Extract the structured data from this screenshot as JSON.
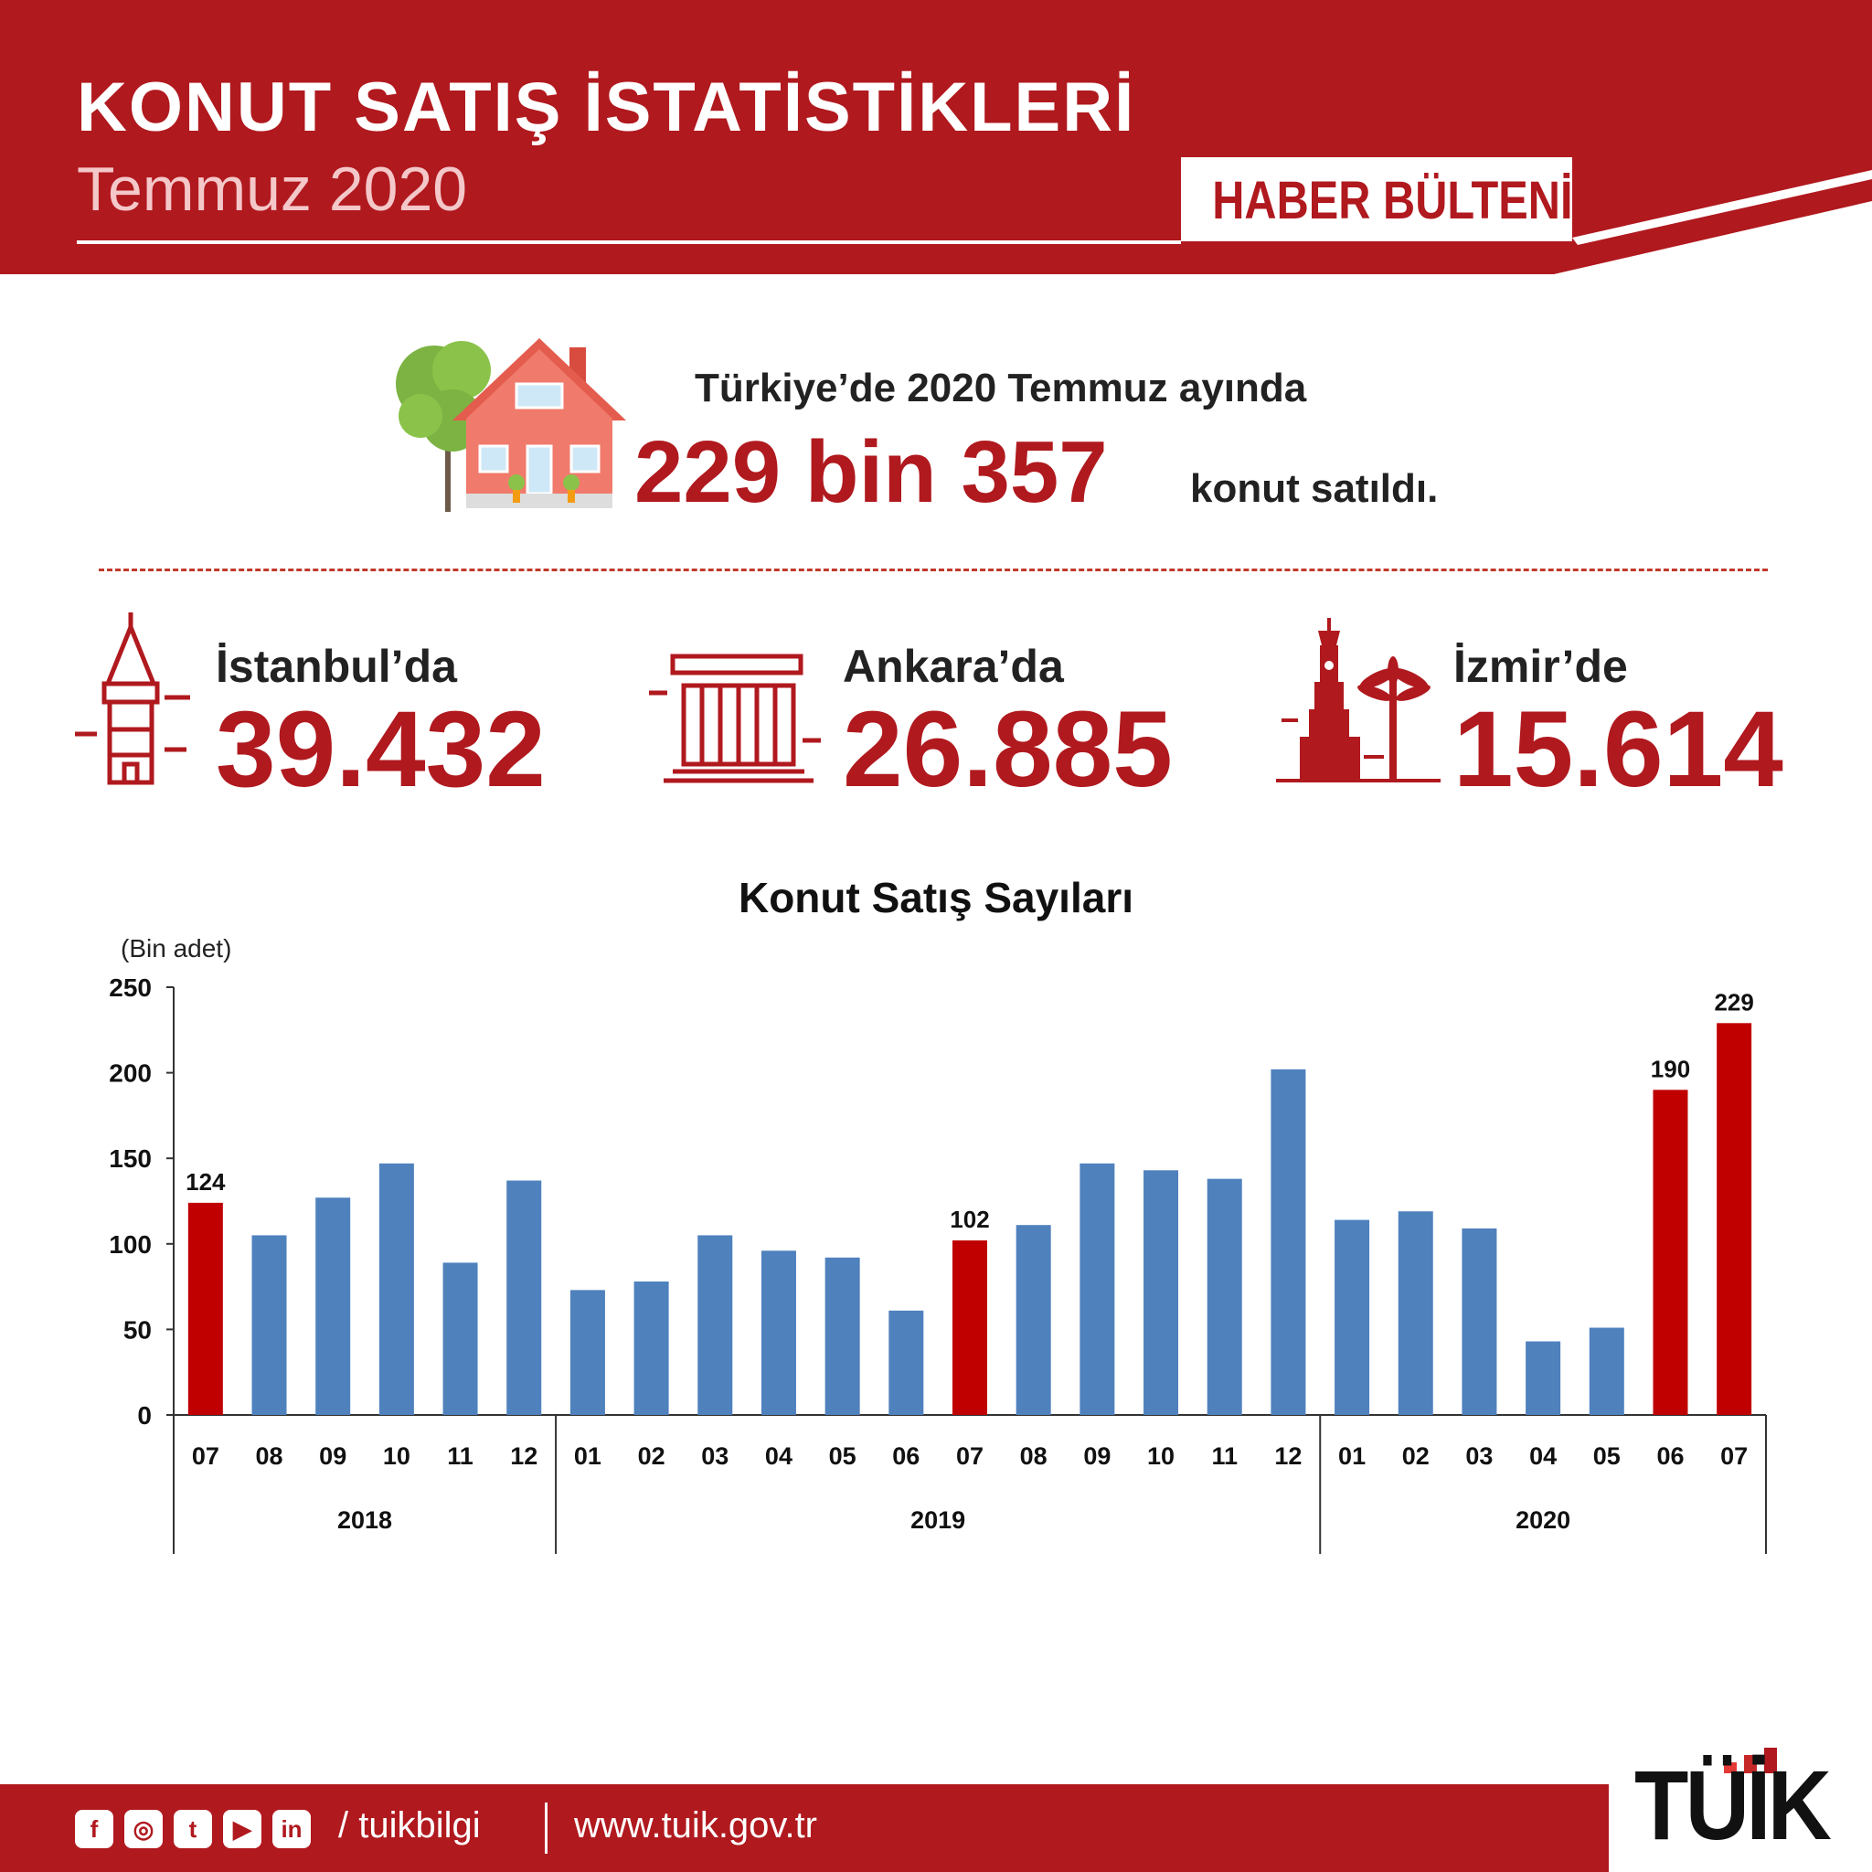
{
  "header": {
    "title": "KONUT SATIŞ İSTATİSTİKLERİ",
    "subtitle": "Temmuz 2020",
    "badge": "HABER BÜLTENİ"
  },
  "headline": {
    "line1": "Türkiye’de 2020 Temmuz ayında",
    "big_number": "229 bin 357",
    "line2": "konut satıldı."
  },
  "cities": [
    {
      "label": "İstanbul’da",
      "value": "39.432",
      "icon": "galata-tower-icon"
    },
    {
      "label": "Ankara’da",
      "value": "26.885",
      "icon": "anitkabir-icon"
    },
    {
      "label": "İzmir’de",
      "value": "15.614",
      "icon": "izmir-clock-tower-icon"
    }
  ],
  "chart_data": {
    "type": "bar",
    "title": "Konut Satış Sayıları",
    "ylabel": "(Bin adet)",
    "ylim": [
      0,
      250
    ],
    "yticks": [
      0,
      50,
      100,
      150,
      200,
      250
    ],
    "grid": false,
    "categories": [
      "07",
      "08",
      "09",
      "10",
      "11",
      "12",
      "01",
      "02",
      "03",
      "04",
      "05",
      "06",
      "07",
      "08",
      "09",
      "10",
      "11",
      "12",
      "01",
      "02",
      "03",
      "04",
      "05",
      "06",
      "07"
    ],
    "years": [
      {
        "label": "2018",
        "count": 6
      },
      {
        "label": "2019",
        "count": 12
      },
      {
        "label": "2020",
        "count": 7
      }
    ],
    "values": [
      124,
      105,
      127,
      147,
      89,
      137,
      73,
      78,
      105,
      96,
      92,
      61,
      102,
      111,
      147,
      143,
      138,
      202,
      114,
      119,
      109,
      43,
      51,
      190,
      229
    ],
    "highlight": [
      true,
      false,
      false,
      false,
      false,
      false,
      false,
      false,
      false,
      false,
      false,
      false,
      true,
      false,
      false,
      false,
      false,
      false,
      false,
      false,
      false,
      false,
      false,
      true,
      true
    ],
    "data_labels": [
      "124",
      "",
      "",
      "",
      "",
      "",
      "",
      "",
      "",
      "",
      "",
      "",
      "102",
      "",
      "",
      "",
      "",
      "",
      "",
      "",
      "",
      "",
      "",
      "190",
      "229"
    ],
    "colors": {
      "normal": "#4f81bd",
      "highlight": "#c00000"
    }
  },
  "footer": {
    "social_icons": [
      "facebook-icon",
      "instagram-icon",
      "twitter-icon",
      "youtube-icon",
      "linkedin-icon"
    ],
    "handle": "/ tuikbilgi",
    "url": "www.tuik.gov.tr"
  },
  "logo": {
    "text": "TÜİK"
  },
  "colors": {
    "brand_red": "#b0191e",
    "bar_blue": "#4f81bd",
    "bar_red": "#c00000"
  }
}
